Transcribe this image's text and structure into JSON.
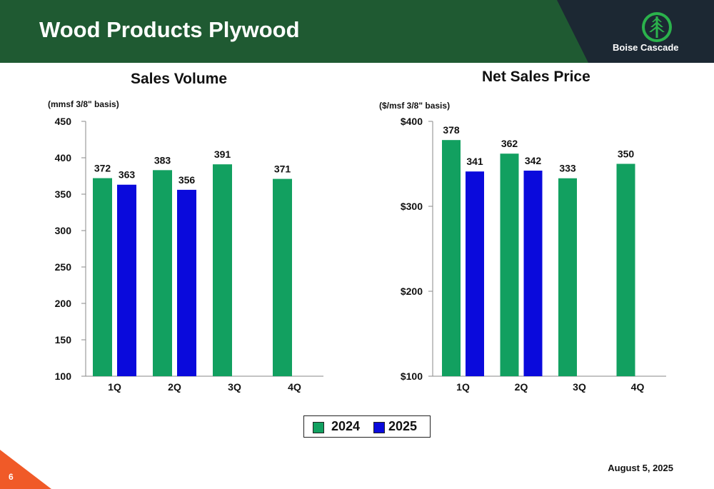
{
  "slide": {
    "title": "Wood Products Plywood",
    "logo_text": "Boise Cascade",
    "date": "August 5, 2025",
    "page_number": "6"
  },
  "colors": {
    "header_green": "#1f5a32",
    "header_dark": "#1c2833",
    "series_2024": "#12a060",
    "series_2025": "#0a0adc",
    "page_corner": "#f05a28"
  },
  "legend": {
    "items": [
      {
        "label": "2024",
        "color": "#12a060"
      },
      {
        "label": "2025",
        "color": "#0a0adc"
      }
    ]
  },
  "chart_data": [
    {
      "type": "bar",
      "title": "Sales Volume",
      "ylabel": "(mmsf 3/8\" basis)",
      "categories": [
        "1Q",
        "2Q",
        "3Q",
        "4Q"
      ],
      "ylim": [
        100,
        450
      ],
      "yticks": [
        "100",
        "150",
        "200",
        "250",
        "300",
        "350",
        "400",
        "450"
      ],
      "series": [
        {
          "name": "2024",
          "values": [
            372,
            383,
            391,
            371
          ],
          "labels": [
            "372",
            "383",
            "391",
            "371"
          ]
        },
        {
          "name": "2025",
          "values": [
            363,
            356,
            null,
            null
          ],
          "labels": [
            "363",
            "356",
            "",
            ""
          ]
        }
      ]
    },
    {
      "type": "bar",
      "title": "Net Sales Price",
      "ylabel": "($/msf 3/8\" basis)",
      "categories": [
        "1Q",
        "2Q",
        "3Q",
        "4Q"
      ],
      "ylim": [
        100,
        400
      ],
      "yticks": [
        "$100",
        "$200",
        "$300",
        "$400"
      ],
      "series": [
        {
          "name": "2024",
          "values": [
            378,
            362,
            333,
            350
          ],
          "labels": [
            "378",
            "362",
            "333",
            "350"
          ]
        },
        {
          "name": "2025",
          "values": [
            341,
            342,
            null,
            null
          ],
          "labels": [
            "341",
            "342",
            "",
            ""
          ]
        }
      ]
    }
  ]
}
